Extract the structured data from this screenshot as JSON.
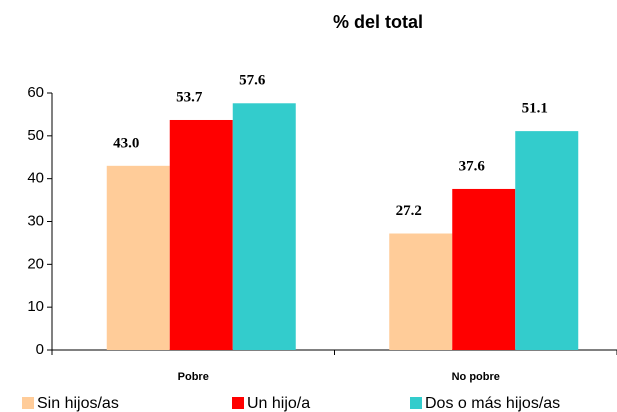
{
  "chart_data": {
    "type": "bar",
    "title": "% del total",
    "categories": [
      "Pobre",
      "No pobre"
    ],
    "series": [
      {
        "name": "Sin hijos/as",
        "color": "#ffcc99",
        "values": [
          43.0,
          27.2
        ],
        "value_labels": [
          "43.0",
          "27.2"
        ]
      },
      {
        "name": "Un hijo/a",
        "color": "#ff0000",
        "values": [
          53.7,
          37.6
        ],
        "value_labels": [
          "53.7",
          "37.6"
        ]
      },
      {
        "name": "Dos o más hijos/as",
        "color": "#33cccc",
        "values": [
          57.6,
          51.1
        ],
        "value_labels": [
          "57.6",
          "51.1"
        ]
      }
    ],
    "ylim": [
      0,
      60
    ],
    "yticks": [
      0,
      10,
      20,
      30,
      40,
      50,
      60
    ],
    "grid": false,
    "legend": "bottom"
  }
}
